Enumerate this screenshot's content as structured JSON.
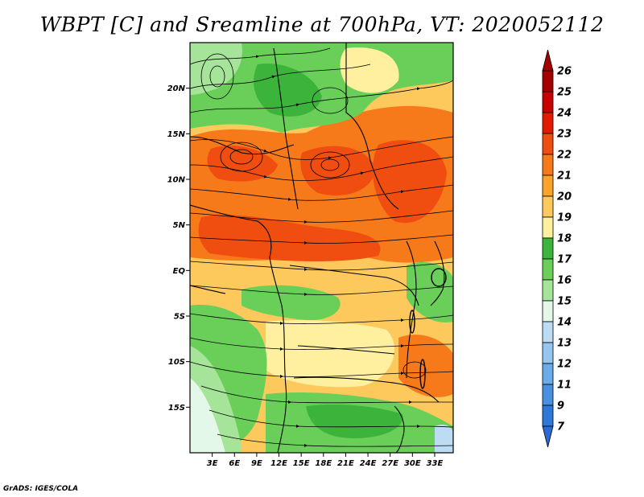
{
  "title": "WBPT [C] and Sreamline at 700hPa, VT: 2020052112",
  "credit": "GrADS: IGES/COLA",
  "map": {
    "lon_range": [
      0,
      35.5
    ],
    "lat_range": [
      -20,
      25
    ],
    "lat_ticks": [
      {
        "value": 20,
        "label": "20N"
      },
      {
        "value": 15,
        "label": "15N"
      },
      {
        "value": 10,
        "label": "10N"
      },
      {
        "value": 5,
        "label": "5N"
      },
      {
        "value": 0,
        "label": "EQ"
      },
      {
        "value": -5,
        "label": "5S"
      },
      {
        "value": -10,
        "label": "10S"
      },
      {
        "value": -15,
        "label": "15S"
      }
    ],
    "lon_ticks": [
      {
        "value": 3,
        "label": "3E"
      },
      {
        "value": 6,
        "label": "6E"
      },
      {
        "value": 9,
        "label": "9E"
      },
      {
        "value": 12,
        "label": "12E"
      },
      {
        "value": 15,
        "label": "15E"
      },
      {
        "value": 18,
        "label": "18E"
      },
      {
        "value": 21,
        "label": "21E"
      },
      {
        "value": 24,
        "label": "24E"
      },
      {
        "value": 27,
        "label": "27E"
      },
      {
        "value": 30,
        "label": "30E"
      },
      {
        "value": 33,
        "label": "33E"
      }
    ]
  },
  "colorbar": {
    "levels": [
      {
        "label": "26",
        "color": "#a50000"
      },
      {
        "label": "25",
        "color": "#c80000"
      },
      {
        "label": "24",
        "color": "#e41a00"
      },
      {
        "label": "23",
        "color": "#f04e10"
      },
      {
        "label": "22",
        "color": "#f77a1a"
      },
      {
        "label": "21",
        "color": "#fba32a"
      },
      {
        "label": "20",
        "color": "#fdc85c"
      },
      {
        "label": "19",
        "color": "#fff0a0"
      },
      {
        "label": "18",
        "color": "#3cb43c"
      },
      {
        "label": "17",
        "color": "#6acf58"
      },
      {
        "label": "16",
        "color": "#a6e49a"
      },
      {
        "label": "15",
        "color": "#e4f8ea"
      },
      {
        "label": "14",
        "color": "#bcdcf4"
      },
      {
        "label": "13",
        "color": "#96c6f0"
      },
      {
        "label": "12",
        "color": "#6aabe8"
      },
      {
        "label": "11",
        "color": "#4a90e0"
      },
      {
        "label": "9",
        "color": "#2e78d8"
      },
      {
        "label": "7",
        "color": "#1e5cc8"
      }
    ],
    "top_arrow_color": "#a50000",
    "bottom_arrow_color": "#2a6ad4"
  }
}
